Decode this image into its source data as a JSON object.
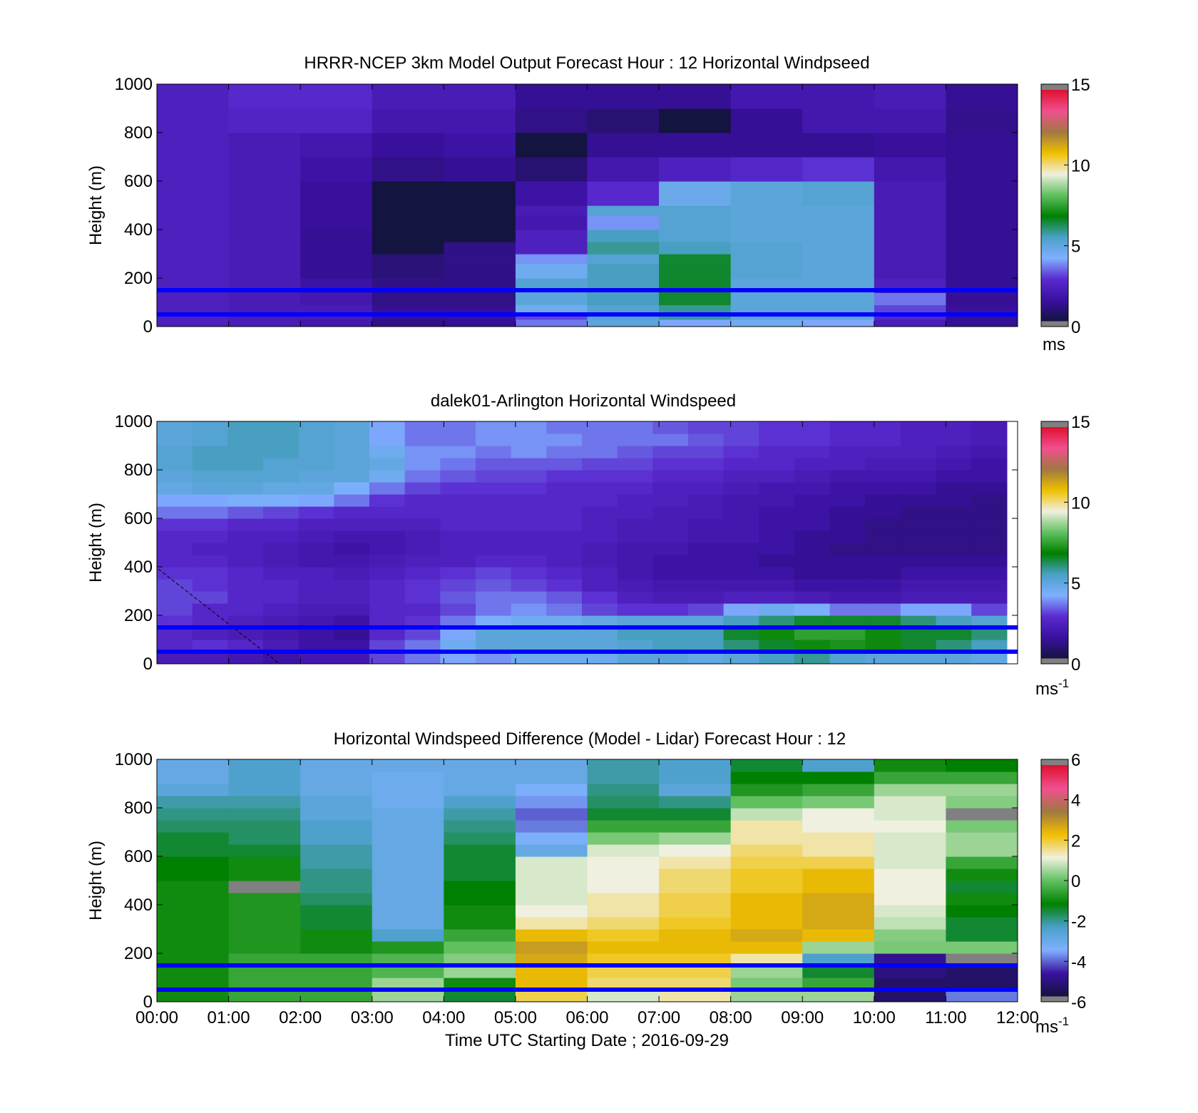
{
  "colorscale": {
    "speed": [
      "#808080",
      "#141440",
      "#3a10a0",
      "#5a2ad0",
      "#7fb0ff",
      "#4aa0c8",
      "#008000",
      "#60c060",
      "#f0f0e0",
      "#f0c000",
      "#a07840",
      "#f05090",
      "#e01030",
      "#808080"
    ],
    "diff": [
      "#808080",
      "#141440",
      "#3a10a0",
      "#7fb0ff",
      "#4aa0c8",
      "#008000",
      "#60c060",
      "#f0f0e0",
      "#f0c000",
      "#a07840",
      "#f05090",
      "#e01030",
      "#808080"
    ]
  },
  "reference_lines": {
    "heights": [
      150,
      50
    ],
    "color": "#0000ff"
  },
  "x_axis": {
    "ticks": [
      "00:00",
      "01:00",
      "02:00",
      "03:00",
      "04:00",
      "05:00",
      "06:00",
      "07:00",
      "08:00",
      "09:00",
      "10:00",
      "11:00",
      "12:00"
    ],
    "label": "Time UTC  Starting Date ; 2016-09-29"
  },
  "chart_data": [
    {
      "type": "heatmap",
      "title": "HRRR-NCEP 3km Model Output   Forecast Hour : 12 Horizontal Windpseed",
      "ylabel": "Height (m)",
      "ylim": [
        0,
        1000
      ],
      "yticks": [
        "0",
        "200",
        "400",
        "600",
        "800",
        "1000"
      ],
      "colorbar": {
        "range": [
          0,
          15
        ],
        "ticks": [
          "0",
          "5",
          "10",
          "15"
        ],
        "unit": "ms",
        "sup": ""
      },
      "x": [
        0,
        1,
        2,
        3,
        4,
        5,
        6,
        7,
        8,
        9,
        10,
        11,
        12
      ],
      "y_edges": [
        0,
        30,
        60,
        90,
        140,
        200,
        260,
        300,
        350,
        400,
        460,
        500,
        600,
        700,
        800,
        900,
        1000
      ],
      "values": [
        [
          2.2,
          2.0,
          1.8,
          1.0,
          1.2,
          3.5,
          5.0,
          4.0,
          4.5,
          4.0,
          2.0,
          1.2
        ],
        [
          2.2,
          2.0,
          2.0,
          1.2,
          1.3,
          3.0,
          5.2,
          5.8,
          5.0,
          5.0,
          2.5,
          1.2
        ],
        [
          2.2,
          2.0,
          2.0,
          1.2,
          1.2,
          4.5,
          5.2,
          5.8,
          5.0,
          5.0,
          3.0,
          1.3
        ],
        [
          2.2,
          2.0,
          1.8,
          1.0,
          1.0,
          5.0,
          5.5,
          6.5,
          5.0,
          5.0,
          3.5,
          1.2
        ],
        [
          2.2,
          2.0,
          1.5,
          1.0,
          1.0,
          5.2,
          5.5,
          6.5,
          5.0,
          5.0,
          2.2,
          1.2
        ],
        [
          2.2,
          2.0,
          1.2,
          0.8,
          1.0,
          4.5,
          5.5,
          6.5,
          5.2,
          5.0,
          2.0,
          1.2
        ],
        [
          2.2,
          2.0,
          1.2,
          0.8,
          1.0,
          3.8,
          5.2,
          6.5,
          5.2,
          5.0,
          2.0,
          1.2
        ],
        [
          2.2,
          2.0,
          1.2,
          0.0,
          1.0,
          2.2,
          5.8,
          5.5,
          5.2,
          5.0,
          2.0,
          1.2
        ],
        [
          2.2,
          2.0,
          1.2,
          0.0,
          0.0,
          2.2,
          5.5,
          5.2,
          5.0,
          5.0,
          2.0,
          1.2
        ],
        [
          2.2,
          2.0,
          1.3,
          0.0,
          0.0,
          1.8,
          3.8,
          5.2,
          5.0,
          5.0,
          2.0,
          1.2
        ],
        [
          2.2,
          2.0,
          1.3,
          0.0,
          0.0,
          2.0,
          5.2,
          5.2,
          5.0,
          5.0,
          2.0,
          1.2
        ],
        [
          2.2,
          2.0,
          1.3,
          0.0,
          0.0,
          1.5,
          2.6,
          4.6,
          5.0,
          5.2,
          2.0,
          1.2
        ],
        [
          2.2,
          2.0,
          1.5,
          1.0,
          1.2,
          0.7,
          1.8,
          2.2,
          2.5,
          2.8,
          1.8,
          1.2
        ],
        [
          2.2,
          2.0,
          1.8,
          1.3,
          1.5,
          0.0,
          1.2,
          1.2,
          1.2,
          1.2,
          1.3,
          1.2
        ],
        [
          2.2,
          2.4,
          2.4,
          1.8,
          1.8,
          1.0,
          0.7,
          0.0,
          1.2,
          1.8,
          1.8,
          1.1
        ],
        [
          2.2,
          2.6,
          2.6,
          2.0,
          2.0,
          1.2,
          1.2,
          1.2,
          1.8,
          1.8,
          2.0,
          1.2
        ]
      ]
    },
    {
      "type": "heatmap",
      "title": "dalek01-Arlington  Horizontal Windspeed",
      "ylabel": "Height (m)",
      "ylim": [
        0,
        1000
      ],
      "yticks": [
        "0",
        "200",
        "400",
        "600",
        "800",
        "1000"
      ],
      "colorbar": {
        "range": [
          0,
          15
        ],
        "ticks": [
          "0",
          "5",
          "10",
          "15"
        ],
        "unit": "ms",
        "sup": "-1"
      },
      "x": [
        0,
        1,
        2,
        3,
        4,
        5,
        6,
        7,
        8,
        9,
        10,
        11,
        12
      ],
      "y_edges": [
        0,
        50,
        100,
        150,
        200,
        250,
        300,
        350,
        400,
        450,
        500,
        550,
        600,
        650,
        700,
        750,
        800,
        850,
        900,
        950,
        1000
      ],
      "data_xmax": 11.85,
      "values": [
        [
          2.0,
          2.0,
          1.8,
          1.5,
          1.8,
          1.8,
          3.0,
          3.5,
          4.0,
          3.8,
          4.5,
          4.5,
          4.5,
          5.0,
          5.0,
          4.8,
          5.0,
          5.5,
          5.8,
          5.2,
          5.0,
          5.0,
          5.0,
          4.8
        ],
        [
          2.5,
          2.8,
          2.5,
          2.0,
          1.5,
          1.5,
          3.0,
          3.5,
          4.5,
          5.0,
          5.0,
          5.0,
          5.0,
          5.2,
          5.5,
          5.5,
          6.0,
          6.5,
          7.0,
          7.2,
          7.0,
          6.5,
          6.0,
          5.5
        ],
        [
          2.5,
          2.2,
          2.0,
          1.8,
          1.5,
          1.2,
          2.5,
          3.0,
          4.0,
          5.0,
          5.0,
          5.0,
          5.0,
          5.5,
          5.5,
          5.5,
          6.5,
          7.0,
          7.5,
          7.5,
          7.0,
          6.5,
          6.5,
          6.0
        ],
        [
          2.8,
          2.5,
          2.2,
          2.0,
          1.8,
          1.5,
          2.5,
          2.8,
          3.5,
          4.2,
          4.5,
          4.5,
          4.8,
          5.0,
          5.0,
          5.0,
          5.5,
          6.0,
          6.5,
          6.5,
          6.5,
          6.0,
          5.5,
          5.2
        ],
        [
          3.0,
          2.5,
          2.5,
          2.2,
          2.0,
          2.0,
          2.5,
          2.5,
          3.0,
          3.5,
          3.8,
          3.5,
          3.0,
          2.8,
          2.8,
          3.0,
          4.0,
          4.5,
          4.2,
          3.5,
          3.5,
          4.0,
          4.0,
          3.0
        ],
        [
          3.0,
          3.0,
          2.5,
          2.5,
          2.2,
          2.2,
          2.5,
          2.8,
          3.2,
          3.5,
          3.5,
          3.2,
          2.8,
          2.2,
          2.0,
          2.0,
          2.2,
          2.2,
          2.0,
          1.8,
          1.8,
          2.0,
          2.0,
          2.0
        ],
        [
          3.0,
          2.8,
          2.5,
          2.5,
          2.2,
          2.2,
          2.5,
          2.8,
          3.0,
          3.2,
          3.0,
          2.8,
          2.2,
          2.0,
          1.8,
          1.8,
          1.8,
          1.8,
          1.5,
          1.5,
          1.5,
          1.8,
          1.8,
          1.8
        ],
        [
          2.8,
          2.8,
          2.5,
          2.2,
          2.2,
          2.0,
          2.2,
          2.5,
          2.8,
          3.0,
          2.8,
          2.5,
          2.2,
          1.8,
          1.5,
          1.5,
          1.5,
          1.5,
          1.2,
          1.2,
          1.2,
          1.5,
          1.5,
          1.5
        ],
        [
          2.5,
          2.5,
          2.2,
          2.0,
          1.8,
          1.8,
          2.0,
          2.2,
          2.2,
          2.5,
          2.5,
          2.2,
          2.0,
          1.8,
          1.5,
          1.5,
          1.5,
          1.2,
          1.2,
          1.2,
          1.2,
          1.2,
          1.2,
          1.2
        ],
        [
          2.5,
          2.2,
          2.2,
          2.0,
          1.8,
          1.5,
          1.8,
          2.0,
          2.2,
          2.2,
          2.2,
          2.2,
          2.0,
          1.8,
          1.8,
          1.5,
          1.5,
          1.5,
          1.2,
          1.0,
          1.0,
          1.0,
          1.0,
          1.0
        ],
        [
          2.5,
          2.5,
          2.2,
          2.2,
          2.0,
          1.8,
          1.8,
          2.0,
          2.2,
          2.2,
          2.2,
          2.2,
          2.2,
          2.0,
          2.0,
          1.8,
          1.8,
          1.5,
          1.2,
          1.2,
          1.0,
          1.0,
          1.0,
          1.0
        ],
        [
          2.8,
          2.8,
          2.5,
          2.5,
          2.2,
          2.2,
          2.2,
          2.2,
          2.5,
          2.5,
          2.5,
          2.5,
          2.2,
          2.0,
          2.0,
          1.8,
          1.8,
          1.5,
          1.5,
          1.2,
          1.0,
          1.0,
          1.0,
          1.0
        ],
        [
          3.5,
          3.5,
          3.2,
          3.0,
          2.8,
          2.5,
          2.5,
          2.5,
          2.5,
          2.5,
          2.5,
          2.5,
          2.2,
          2.2,
          2.0,
          2.0,
          1.8,
          1.5,
          1.5,
          1.2,
          1.2,
          1.0,
          1.0,
          1.0
        ],
        [
          4.0,
          4.0,
          4.2,
          4.2,
          4.0,
          3.5,
          2.8,
          2.5,
          2.5,
          2.5,
          2.5,
          2.5,
          2.5,
          2.2,
          2.2,
          2.0,
          1.8,
          1.8,
          1.5,
          1.5,
          1.2,
          1.2,
          1.2,
          1.0
        ],
        [
          4.8,
          5.0,
          5.0,
          4.8,
          4.8,
          4.2,
          3.5,
          3.0,
          2.8,
          2.8,
          2.8,
          2.5,
          2.5,
          2.5,
          2.2,
          2.2,
          2.0,
          1.8,
          1.8,
          1.5,
          1.5,
          1.5,
          1.2,
          1.2
        ],
        [
          5.0,
          5.2,
          5.2,
          5.2,
          5.0,
          5.0,
          4.5,
          3.5,
          3.2,
          3.0,
          3.0,
          2.8,
          2.8,
          2.8,
          2.5,
          2.5,
          2.2,
          2.2,
          2.0,
          1.8,
          1.8,
          1.8,
          1.5,
          1.5
        ],
        [
          5.2,
          5.5,
          5.5,
          5.2,
          5.2,
          5.0,
          4.8,
          3.8,
          3.5,
          3.2,
          3.2,
          3.2,
          3.0,
          3.0,
          2.8,
          2.8,
          2.5,
          2.5,
          2.2,
          2.2,
          2.0,
          2.0,
          1.8,
          1.5
        ],
        [
          5.2,
          5.5,
          5.5,
          5.5,
          5.2,
          5.0,
          4.5,
          3.8,
          3.8,
          3.5,
          3.8,
          3.5,
          3.5,
          3.2,
          3.0,
          3.0,
          2.8,
          2.5,
          2.5,
          2.2,
          2.2,
          2.2,
          2.0,
          1.8
        ],
        [
          5.0,
          5.2,
          5.5,
          5.5,
          5.2,
          5.0,
          4.0,
          3.5,
          3.5,
          3.8,
          3.8,
          3.8,
          3.5,
          3.5,
          3.5,
          3.2,
          3.0,
          2.8,
          2.8,
          2.5,
          2.5,
          2.2,
          2.2,
          2.0
        ],
        [
          5.0,
          5.2,
          5.5,
          5.5,
          5.2,
          5.0,
          4.0,
          3.5,
          3.5,
          3.8,
          3.8,
          3.5,
          3.5,
          3.5,
          3.2,
          3.0,
          3.0,
          2.8,
          2.8,
          2.5,
          2.5,
          2.2,
          2.2,
          2.0
        ]
      ]
    },
    {
      "type": "heatmap",
      "title": "Horizontal Windspeed Difference (Model - Lidar) Forecast Hour : 12",
      "ylabel": "Height (m)",
      "ylim": [
        0,
        1000
      ],
      "yticks": [
        "0",
        "200",
        "400",
        "600",
        "800",
        "1000"
      ],
      "colorbar": {
        "range": [
          -6,
          6
        ],
        "ticks": [
          "-6",
          "-4",
          "-2",
          "0",
          "2",
          "4",
          "6"
        ],
        "unit": "ms",
        "sup": "-1"
      },
      "x": [
        0,
        1,
        2,
        3,
        4,
        5,
        6,
        7,
        8,
        9,
        10,
        11,
        12
      ],
      "y_edges": [
        0,
        50,
        100,
        150,
        200,
        250,
        300,
        350,
        400,
        450,
        500,
        550,
        600,
        650,
        700,
        750,
        800,
        850,
        900,
        950,
        1000
      ],
      "values": [
        [
          -1.0,
          -0.5,
          -0.5,
          0.5,
          -1.5,
          2.0,
          1.0,
          1.5,
          0.5,
          0.5,
          -5.5,
          -4.0
        ],
        [
          -1.0,
          -0.5,
          -0.5,
          0.5,
          -1.0,
          2.5,
          1.8,
          1.8,
          0.2,
          -0.5,
          -5.5,
          -5.5
        ],
        [
          -1.0,
          -0.5,
          -0.5,
          -0.2,
          0.5,
          2.5,
          2.0,
          2.0,
          0.5,
          -1.5,
          -5.2,
          -5.5
        ],
        [
          -1.0,
          -0.5,
          -0.5,
          -0.2,
          0.3,
          2.8,
          2.2,
          2.2,
          1.5,
          -2.5,
          -5.0,
          6.5
        ],
        [
          -1.0,
          -0.8,
          -1.0,
          -0.8,
          0.0,
          3.0,
          2.5,
          2.5,
          2.5,
          0.5,
          0.2,
          0.2
        ],
        [
          -1.0,
          -0.8,
          -1.0,
          -2.5,
          -0.5,
          2.5,
          2.2,
          2.5,
          2.8,
          2.5,
          0.3,
          -1.5
        ],
        [
          -1.0,
          -0.8,
          -1.5,
          -3.0,
          -1.0,
          1.5,
          1.8,
          2.2,
          2.5,
          2.8,
          0.8,
          -1.5
        ],
        [
          -1.0,
          -0.8,
          -1.5,
          -3.0,
          -1.0,
          1.2,
          1.5,
          2.0,
          2.5,
          2.8,
          1.0,
          -1.2
        ],
        [
          -1.0,
          -0.8,
          -1.8,
          -3.0,
          -1.2,
          1.0,
          1.5,
          2.0,
          2.5,
          2.8,
          1.2,
          -1.0
        ],
        [
          -1.0,
          6.5,
          -2.0,
          -3.0,
          -1.2,
          1.0,
          1.2,
          1.8,
          2.2,
          2.5,
          1.2,
          -1.5
        ],
        [
          -1.2,
          -1.0,
          -2.0,
          -3.0,
          -1.5,
          1.0,
          1.2,
          1.8,
          2.2,
          2.5,
          1.2,
          -1.0
        ],
        [
          -1.2,
          -1.0,
          -2.2,
          -3.0,
          -1.5,
          1.0,
          1.2,
          1.5,
          2.0,
          2.0,
          1.0,
          -0.5
        ],
        [
          -1.5,
          -1.5,
          -2.2,
          -3.0,
          -1.5,
          -3.0,
          1.0,
          1.2,
          1.8,
          1.5,
          1.0,
          0.5
        ],
        [
          -1.5,
          -1.8,
          -2.5,
          -3.0,
          -1.8,
          -3.5,
          0.2,
          0.5,
          1.5,
          1.5,
          1.0,
          0.5
        ],
        [
          -1.8,
          -1.8,
          -2.5,
          -3.0,
          -2.0,
          -4.0,
          -0.5,
          -0.5,
          1.5,
          1.2,
          1.2,
          0.2
        ],
        [
          -2.0,
          -2.0,
          -2.8,
          -3.0,
          -2.2,
          -4.2,
          -1.5,
          -1.5,
          0.8,
          1.2,
          1.0,
          6.5
        ],
        [
          -2.2,
          -2.2,
          -2.8,
          -3.2,
          -2.5,
          -3.8,
          -1.8,
          -2.0,
          0.0,
          0.2,
          1.0,
          0.3
        ],
        [
          -2.8,
          -2.5,
          -3.0,
          -3.2,
          -3.0,
          -3.5,
          -2.0,
          -2.8,
          -0.8,
          -0.5,
          0.5,
          0.5
        ],
        [
          -3.0,
          -2.5,
          -3.0,
          -3.2,
          -3.0,
          -3.0,
          -2.2,
          -2.5,
          -1.2,
          -1.2,
          -0.5,
          -0.5
        ],
        [
          -3.0,
          -2.5,
          -3.0,
          -3.0,
          -3.0,
          -3.0,
          -2.2,
          -2.5,
          -1.5,
          -2.5,
          -1.0,
          -1.2
        ]
      ]
    }
  ]
}
